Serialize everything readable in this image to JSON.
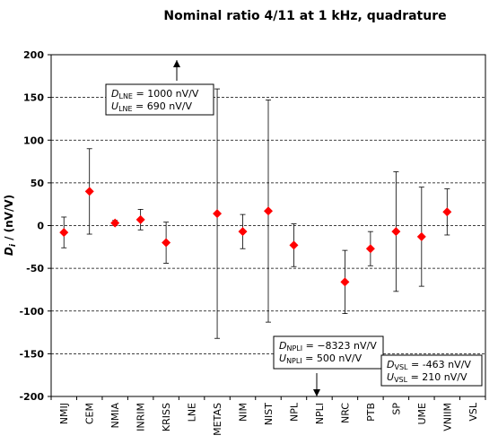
{
  "chart_data": {
    "type": "scatter",
    "title": "Nominal ratio 4/11 at 1 kHz, quadrature",
    "ylabel_main": "D",
    "ylabel_sub": "i",
    "ylabel_rest": " / (nV/V)",
    "ylim": [
      -200,
      200
    ],
    "yticks": [
      200,
      150,
      100,
      50,
      0,
      -50,
      -100,
      -150,
      -200
    ],
    "grid": "horizontal dashed",
    "marker_color": "#ff0000",
    "categories": [
      "NMIJ",
      "CEM",
      "NMIA",
      "INRIM",
      "KRISS",
      "LNE",
      "METAS",
      "NIM",
      "NIST",
      "NPL",
      "NPLI",
      "NRC",
      "PTB",
      "SP",
      "UME",
      "VNIIM",
      "VSL"
    ],
    "values": [
      -8,
      40,
      3,
      7,
      -20,
      null,
      14,
      -7,
      17,
      -23,
      null,
      -66,
      -27,
      -7,
      -13,
      16,
      null
    ],
    "uncertainty": [
      18,
      50,
      3,
      12,
      24,
      null,
      146,
      20,
      130,
      25,
      null,
      37,
      20,
      70,
      58,
      27,
      null
    ],
    "offscale": [
      {
        "category": "LNE",
        "direction": "up",
        "D_label": "D",
        "D_sub": "LNE",
        "D_value": "= 1000 nV/V",
        "U_label": "U",
        "U_sub": "LNE",
        "U_value": "= 690 nV/V"
      },
      {
        "category": "NPLI",
        "direction": "down",
        "D_label": "D",
        "D_sub": "NPLI",
        "D_value": "= −8323 nV/V",
        "U_label": "U",
        "U_sub": "NPLI",
        "U_value": "= 500 nV/V"
      },
      {
        "category": "VSL",
        "direction": "none",
        "D_label": "D",
        "D_sub": "VSL",
        "D_value": "= -463 nV/V",
        "U_label": "U",
        "U_sub": "VSL",
        "U_value": "= 210 nV/V"
      }
    ]
  }
}
